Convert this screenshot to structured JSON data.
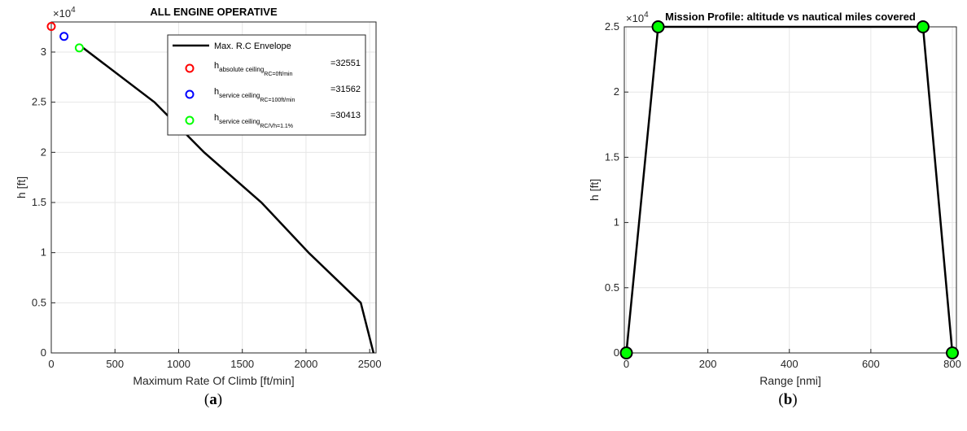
{
  "chart_data": [
    {
      "type": "line",
      "title": "ALL ENGINE OPERATIVE",
      "xlabel": "Maximum Rate Of Climb [ft/min]",
      "ylabel": "h [ft]",
      "exponent_label": "×10",
      "exponent_power": "4",
      "xlim": [
        0,
        2550
      ],
      "ylim": [
        0,
        33000
      ],
      "xticks": [
        0,
        500,
        1000,
        1500,
        2000,
        2500
      ],
      "xtick_labels": [
        "0",
        "500",
        "1000",
        "1500",
        "2000",
        "2500"
      ],
      "yticks": [
        0,
        5000,
        10000,
        15000,
        20000,
        25000,
        30000
      ],
      "ytick_labels": [
        "0",
        "0.5",
        "1",
        "1.5",
        "2",
        "2.5",
        "3"
      ],
      "grid": true,
      "legend_position": "top-right",
      "series": [
        {
          "name": "Max. R.C Envelope",
          "color": "#000000",
          "x": [
            2530,
            2430,
            2020,
            1650,
            1200,
            810,
            250
          ],
          "y": [
            0,
            5000,
            10000,
            15000,
            20000,
            25000,
            30413
          ]
        }
      ],
      "markers": [
        {
          "label_main": "h",
          "label_sub": "absolute ceiling",
          "label_subsub": "RC=0ft/min",
          "value_text": "=32551",
          "color": "#ff0000",
          "x": 0,
          "y": 32551
        },
        {
          "label_main": "h",
          "label_sub": "service ceiling",
          "label_subsub": "RC=100ft/min",
          "value_text": "=31562",
          "color": "#0000ff",
          "x": 100,
          "y": 31562
        },
        {
          "label_main": "h",
          "label_sub": "service ceiling",
          "label_subsub": "RC/Vh=1.1%",
          "value_text": "=30413",
          "color": "#00ff00",
          "x": 220,
          "y": 30413
        }
      ],
      "caption": "a"
    },
    {
      "type": "line",
      "title": "Mission Profile: altitude vs nautical miles covered",
      "xlabel": "Range [nmi]",
      "ylabel": "h [ft]",
      "exponent_label": "×10",
      "exponent_power": "4",
      "xlim": [
        -5,
        810
      ],
      "ylim": [
        0,
        25000
      ],
      "xticks": [
        0,
        200,
        400,
        600,
        800
      ],
      "xtick_labels": [
        "0",
        "200",
        "400",
        "600",
        "800"
      ],
      "yticks": [
        0,
        5000,
        10000,
        15000,
        20000,
        25000
      ],
      "ytick_labels": [
        "0",
        "0.5",
        "1",
        "1.5",
        "2",
        "2.5"
      ],
      "grid": true,
      "series": [
        {
          "color": "#000000",
          "marker_color": "#00ff00",
          "x": [
            0,
            78,
            728,
            800
          ],
          "y": [
            0,
            25000,
            25000,
            0
          ]
        }
      ],
      "caption": "b"
    }
  ]
}
